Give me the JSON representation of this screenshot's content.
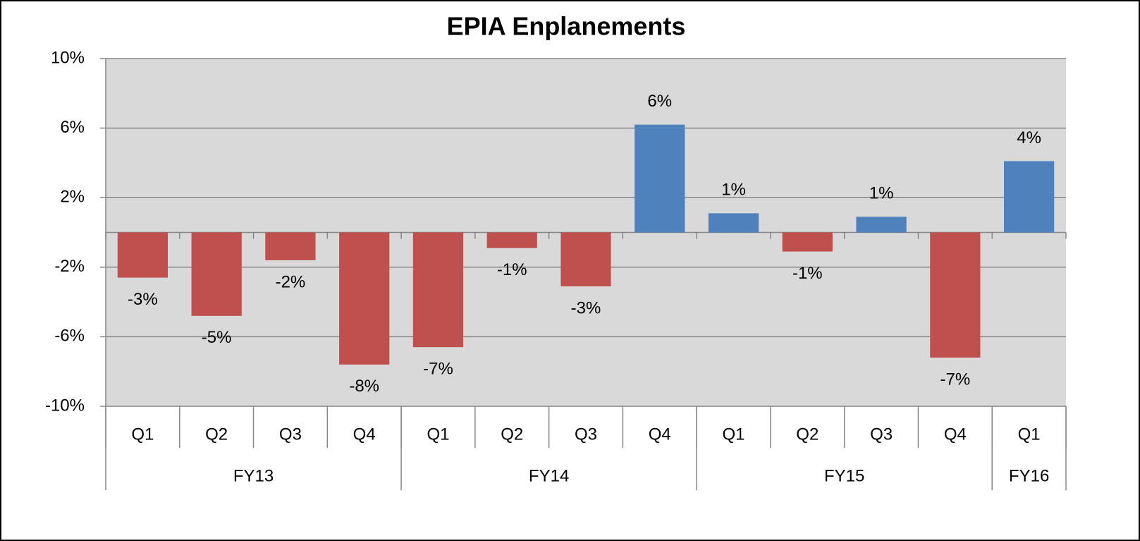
{
  "chart_data": {
    "type": "bar",
    "title": "EPIA Enplanements",
    "categories": [
      "Q1",
      "Q2",
      "Q3",
      "Q4",
      "Q1",
      "Q2",
      "Q3",
      "Q4",
      "Q1",
      "Q2",
      "Q3",
      "Q4",
      "Q1"
    ],
    "groups": [
      {
        "label": "FY13",
        "count": 4
      },
      {
        "label": "FY14",
        "count": 4
      },
      {
        "label": "FY15",
        "count": 4
      },
      {
        "label": "FY16",
        "count": 1
      }
    ],
    "values": [
      -2.6,
      -4.8,
      -1.6,
      -7.6,
      -6.6,
      -0.9,
      -3.1,
      6.2,
      1.1,
      -1.1,
      0.9,
      -7.2,
      4.1
    ],
    "value_labels": [
      "-3%",
      "-5%",
      "-2%",
      "-8%",
      "-7%",
      "-1%",
      "-3%",
      "6%",
      "1%",
      "-1%",
      "1%",
      "-7%",
      "4%"
    ],
    "color": "#4f81bd",
    "negative_color": "#c0504d",
    "ylim": [
      -10,
      10
    ],
    "yticks": [
      {
        "value": -10,
        "label": "-10%"
      },
      {
        "value": -6,
        "label": "-6%"
      },
      {
        "value": -2,
        "label": "-2%"
      },
      {
        "value": 2,
        "label": "2%"
      },
      {
        "value": 6,
        "label": "6%"
      },
      {
        "value": 10,
        "label": "10%"
      }
    ],
    "grid": true
  }
}
